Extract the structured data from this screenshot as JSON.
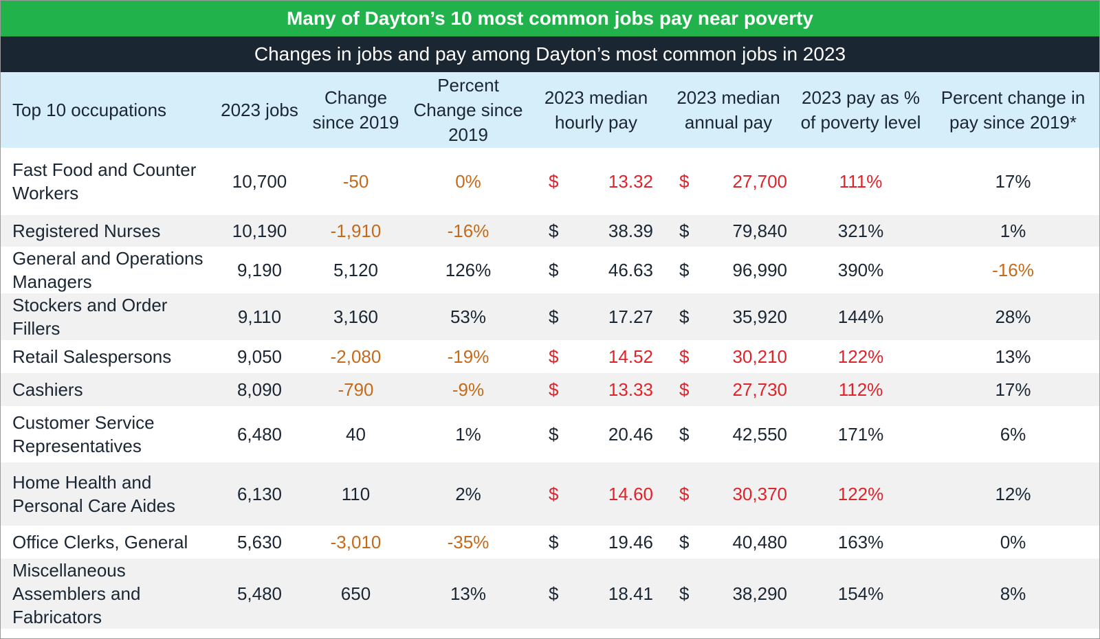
{
  "title": "Many of Dayton’s 10 most common jobs pay near poverty",
  "subtitle": "Changes in jobs and pay among Dayton’s most common jobs in 2023",
  "colors": {
    "title_bg": "#21b24b",
    "subtitle_bg": "#1b2633",
    "header_bg": "#d6eef9",
    "negative": "#c46a1a",
    "near_poverty": "#e0222a"
  },
  "chart_data": {
    "type": "table",
    "headers": [
      "Top 10 occupations",
      "2023 jobs",
      "Change since 2019",
      "Percent Change since 2019",
      "2023 median hourly pay",
      "2023 median annual pay",
      "2023 pay as % of poverty level",
      "Percent change in pay since 2019*"
    ],
    "rows": [
      {
        "occupation": "Fast Food and Counter Workers",
        "jobs": "10,700",
        "change": "-50",
        "pct_change": "0%",
        "hourly": "13.32",
        "annual": "27,700",
        "pct_poverty": "111%",
        "pay_change": "17%",
        "neg_change": true,
        "red_pay": true,
        "neg_pay_change": false
      },
      {
        "occupation": "Registered Nurses",
        "jobs": "10,190",
        "change": "-1,910",
        "pct_change": "-16%",
        "hourly": "38.39",
        "annual": "79,840",
        "pct_poverty": "321%",
        "pay_change": "1%",
        "neg_change": true,
        "red_pay": false,
        "neg_pay_change": false
      },
      {
        "occupation": "General and Operations Managers",
        "jobs": "9,190",
        "change": "5,120",
        "pct_change": "126%",
        "hourly": "46.63",
        "annual": "96,990",
        "pct_poverty": "390%",
        "pay_change": "-16%",
        "neg_change": false,
        "red_pay": false,
        "neg_pay_change": true
      },
      {
        "occupation": "Stockers and Order Fillers",
        "jobs": "9,110",
        "change": "3,160",
        "pct_change": "53%",
        "hourly": "17.27",
        "annual": "35,920",
        "pct_poverty": "144%",
        "pay_change": "28%",
        "neg_change": false,
        "red_pay": false,
        "neg_pay_change": false
      },
      {
        "occupation": "Retail Salespersons",
        "jobs": "9,050",
        "change": "-2,080",
        "pct_change": "-19%",
        "hourly": "14.52",
        "annual": "30,210",
        "pct_poverty": "122%",
        "pay_change": "13%",
        "neg_change": true,
        "red_pay": true,
        "neg_pay_change": false
      },
      {
        "occupation": "Cashiers",
        "jobs": "8,090",
        "change": "-790",
        "pct_change": "-9%",
        "hourly": "13.33",
        "annual": "27,730",
        "pct_poverty": "112%",
        "pay_change": "17%",
        "neg_change": true,
        "red_pay": true,
        "neg_pay_change": false
      },
      {
        "occupation": "Customer Service Representatives",
        "jobs": "6,480",
        "change": "40",
        "pct_change": "1%",
        "hourly": "20.46",
        "annual": "42,550",
        "pct_poverty": "171%",
        "pay_change": "6%",
        "neg_change": false,
        "red_pay": false,
        "neg_pay_change": false
      },
      {
        "occupation": "Home Health and Personal Care Aides",
        "jobs": "6,130",
        "change": "110",
        "pct_change": "2%",
        "hourly": "14.60",
        "annual": "30,370",
        "pct_poverty": "122%",
        "pay_change": "12%",
        "neg_change": false,
        "red_pay": true,
        "neg_pay_change": false
      },
      {
        "occupation": "Office Clerks, General",
        "jobs": "5,630",
        "change": "-3,010",
        "pct_change": "-35%",
        "hourly": "19.46",
        "annual": "40,480",
        "pct_poverty": "163%",
        "pay_change": "0%",
        "neg_change": true,
        "red_pay": false,
        "neg_pay_change": false
      },
      {
        "occupation": "Miscellaneous Assemblers and Fabricators",
        "jobs": "5,480",
        "change": "650",
        "pct_change": "13%",
        "hourly": "18.41",
        "annual": "38,290",
        "pct_poverty": "154%",
        "pay_change": "8%",
        "neg_change": false,
        "red_pay": false,
        "neg_pay_change": false
      }
    ],
    "currency_symbol": "$"
  }
}
